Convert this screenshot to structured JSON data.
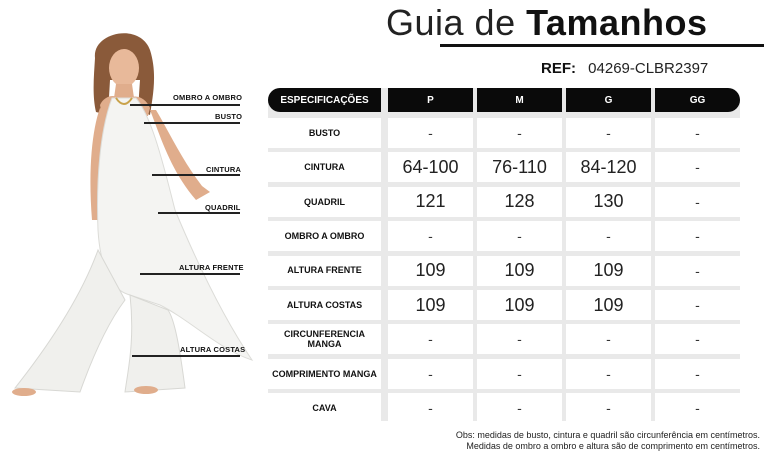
{
  "header": {
    "title_light": "Guia de",
    "title_bold": "Tamanhos",
    "ref_label": "REF:",
    "ref_value": "04269-CLBR2397"
  },
  "figure": {
    "labels": {
      "ombro_a_ombro": "OMBRO A OMBRO",
      "busto": "BUSTO",
      "cintura": "CINTURA",
      "quadril": "QUADRIL",
      "altura_frente": "ALTURA FRENTE",
      "altura_costas": "ALTURA COSTAS"
    }
  },
  "table": {
    "columns": [
      "ESPECIFICAÇÕES",
      "P",
      "M",
      "G",
      "GG"
    ],
    "rows": [
      {
        "spec": "BUSTO",
        "values": [
          "-",
          "-",
          "-",
          "-"
        ]
      },
      {
        "spec": "CINTURA",
        "values": [
          "64-100",
          "76-110",
          "84-120",
          "-"
        ]
      },
      {
        "spec": "QUADRIL",
        "values": [
          "121",
          "128",
          "130",
          "-"
        ]
      },
      {
        "spec": "OMBRO A OMBRO",
        "values": [
          "-",
          "-",
          "-",
          "-"
        ]
      },
      {
        "spec": "ALTURA FRENTE",
        "values": [
          "109",
          "109",
          "109",
          "-"
        ]
      },
      {
        "spec": "ALTURA COSTAS",
        "values": [
          "109",
          "109",
          "109",
          "-"
        ]
      },
      {
        "spec": "CIRCUNFERENCIA MANGA",
        "values": [
          "-",
          "-",
          "-",
          "-"
        ]
      },
      {
        "spec": "COMPRIMENTO MANGA",
        "values": [
          "-",
          "-",
          "-",
          "-"
        ]
      },
      {
        "spec": "CAVA",
        "values": [
          "-",
          "-",
          "-",
          "-"
        ]
      }
    ]
  },
  "note": {
    "line1": "Obs: medidas de busto, cintura e quadril são circunferência em centímetros.",
    "line2": "Medidas de ombro a ombro e altura são de comprimento em centímetros."
  },
  "colors": {
    "header_bg": "#0a0a0a",
    "table_bg": "#e9e9e9",
    "cell_bg": "#ffffff",
    "garment": "#f4f4f2"
  }
}
